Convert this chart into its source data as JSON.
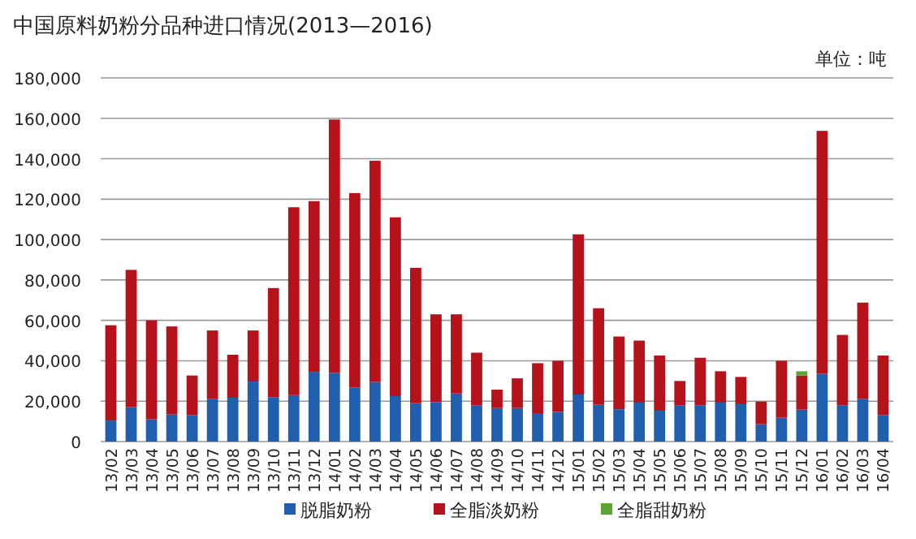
{
  "chart_data": {
    "type": "bar",
    "stacked": true,
    "title": "中国原料奶粉分品种进口情况(2013—2016)",
    "annotations": [
      "单位：吨"
    ],
    "categories": [
      "13/02",
      "13/03",
      "13/04",
      "13/05",
      "13/06",
      "13/07",
      "13/08",
      "13/09",
      "13/10",
      "13/11",
      "13/12",
      "14/01",
      "14/02",
      "14/03",
      "14/04",
      "14/05",
      "14/06",
      "14/07",
      "14/08",
      "14/09",
      "14/10",
      "14/11",
      "14/12",
      "15/01",
      "15/02",
      "15/03",
      "15/04",
      "15/05",
      "15/06",
      "15/07",
      "15/08",
      "15/09",
      "15/10",
      "15/11",
      "15/12",
      "16/01",
      "16/02",
      "16/03",
      "16/04"
    ],
    "series": [
      {
        "name": "脱脂奶粉",
        "color": "#1f5fae",
        "values": [
          10400,
          17000,
          11000,
          13400,
          13000,
          21000,
          21700,
          29700,
          22000,
          23000,
          34500,
          34000,
          26800,
          29500,
          22500,
          19000,
          19500,
          23800,
          18000,
          16600,
          16600,
          13700,
          14700,
          23300,
          18200,
          16000,
          19300,
          15300,
          18000,
          18000,
          19300,
          18500,
          8600,
          11800,
          15800,
          33500,
          18000,
          21000,
          13000
        ]
      },
      {
        "name": "全脂淡奶粉",
        "color": "#b5121b",
        "values": [
          47200,
          68000,
          49000,
          43600,
          19700,
          34000,
          21300,
          25300,
          54000,
          93000,
          84500,
          125400,
          96200,
          109500,
          88500,
          67000,
          43500,
          39200,
          26000,
          9100,
          14700,
          25100,
          25300,
          79300,
          47800,
          36000,
          30700,
          27300,
          12000,
          23500,
          15500,
          13500,
          11200,
          28200,
          16900,
          120300,
          34800,
          47800,
          29600
        ]
      },
      {
        "name": "全脂甜奶粉",
        "color": "#5aa532",
        "values": [
          null,
          null,
          null,
          null,
          null,
          null,
          null,
          null,
          null,
          null,
          null,
          null,
          null,
          null,
          null,
          null,
          null,
          null,
          null,
          null,
          null,
          null,
          null,
          null,
          null,
          null,
          null,
          null,
          null,
          null,
          null,
          null,
          null,
          null,
          2100,
          null,
          null,
          null,
          null
        ]
      }
    ],
    "ylim": [
      0,
      180000
    ],
    "yticks": [
      0,
      {
        "value": 20000,
        "label": "20,000"
      },
      {
        "value": 40000,
        "label": "40,000"
      },
      {
        "value": 60000,
        "label": "60,000"
      },
      {
        "value": 80000,
        "label": "80,000"
      },
      {
        "value": 100000,
        "label": "100,000"
      },
      {
        "value": 120000,
        "label": "120,000"
      },
      {
        "value": 140000,
        "label": "140,000"
      },
      {
        "value": 160000,
        "label": "160,000"
      },
      {
        "value": 180000,
        "label": "180,000"
      }
    ],
    "grid": "y",
    "legend": "bottom"
  }
}
